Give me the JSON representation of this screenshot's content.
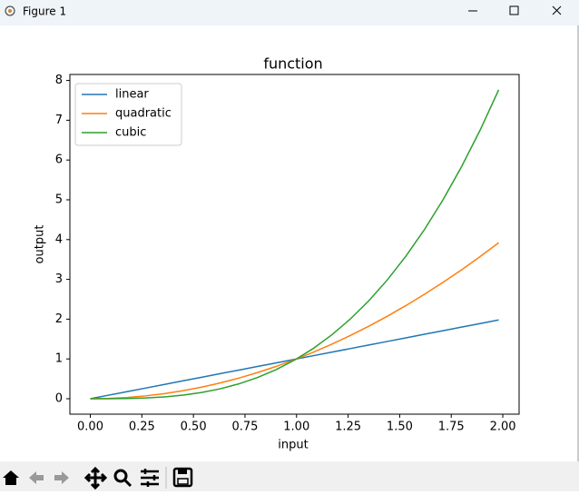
{
  "window": {
    "title": "Figure 1"
  },
  "chart_data": {
    "type": "line",
    "title": "function",
    "x_label": "input",
    "y_label": "output",
    "x": [
      0,
      0.09,
      0.18,
      0.27,
      0.36,
      0.45,
      0.54,
      0.63,
      0.72,
      0.81,
      0.9,
      0.99,
      1.08,
      1.17,
      1.26,
      1.35,
      1.44,
      1.53,
      1.62,
      1.71,
      1.8,
      1.89,
      1.98
    ],
    "series": [
      {
        "name": "linear",
        "color": "#1f77b4",
        "values": [
          0,
          0.09,
          0.18,
          0.27,
          0.36,
          0.45,
          0.54,
          0.63,
          0.72,
          0.81,
          0.9,
          0.99,
          1.08,
          1.17,
          1.26,
          1.35,
          1.44,
          1.53,
          1.62,
          1.71,
          1.8,
          1.89,
          1.98
        ]
      },
      {
        "name": "quadratic",
        "color": "#ff7f0e",
        "values": [
          0,
          0.0081,
          0.0324,
          0.0729,
          0.1296,
          0.2025,
          0.2916,
          0.3969,
          0.5184,
          0.6561,
          0.81,
          0.9801,
          1.1664,
          1.3689,
          1.5876,
          1.8225,
          2.0736,
          2.3409,
          2.6244,
          2.9241,
          3.24,
          3.5721,
          3.9204
        ]
      },
      {
        "name": "cubic",
        "color": "#2ca02c",
        "values": [
          0,
          0.000729,
          0.005832,
          0.019683,
          0.046656,
          0.091125,
          0.157464,
          0.250047,
          0.373248,
          0.531441,
          0.729,
          0.970299,
          1.259712,
          1.601613,
          2.000376,
          2.460375,
          2.985984,
          3.581577,
          4.251528,
          5.000211,
          5.832,
          6.751269,
          7.762392
        ]
      }
    ],
    "xlim": [
      -0.099,
      2.079
    ],
    "ylim": [
      -0.388,
      8.15
    ],
    "xticks": [
      {
        "value": 0,
        "label": "0.00"
      },
      {
        "value": 0.25,
        "label": "0.25"
      },
      {
        "value": 0.5,
        "label": "0.50"
      },
      {
        "value": 0.75,
        "label": "0.75"
      },
      {
        "value": 1,
        "label": "1.00"
      },
      {
        "value": 1.25,
        "label": "1.25"
      },
      {
        "value": 1.5,
        "label": "1.50"
      },
      {
        "value": 1.75,
        "label": "1.75"
      },
      {
        "value": 2,
        "label": "2.00"
      }
    ],
    "yticks": [
      0,
      1,
      2,
      3,
      4,
      5,
      6,
      7,
      8
    ],
    "grid": false,
    "legend": "upper left"
  }
}
